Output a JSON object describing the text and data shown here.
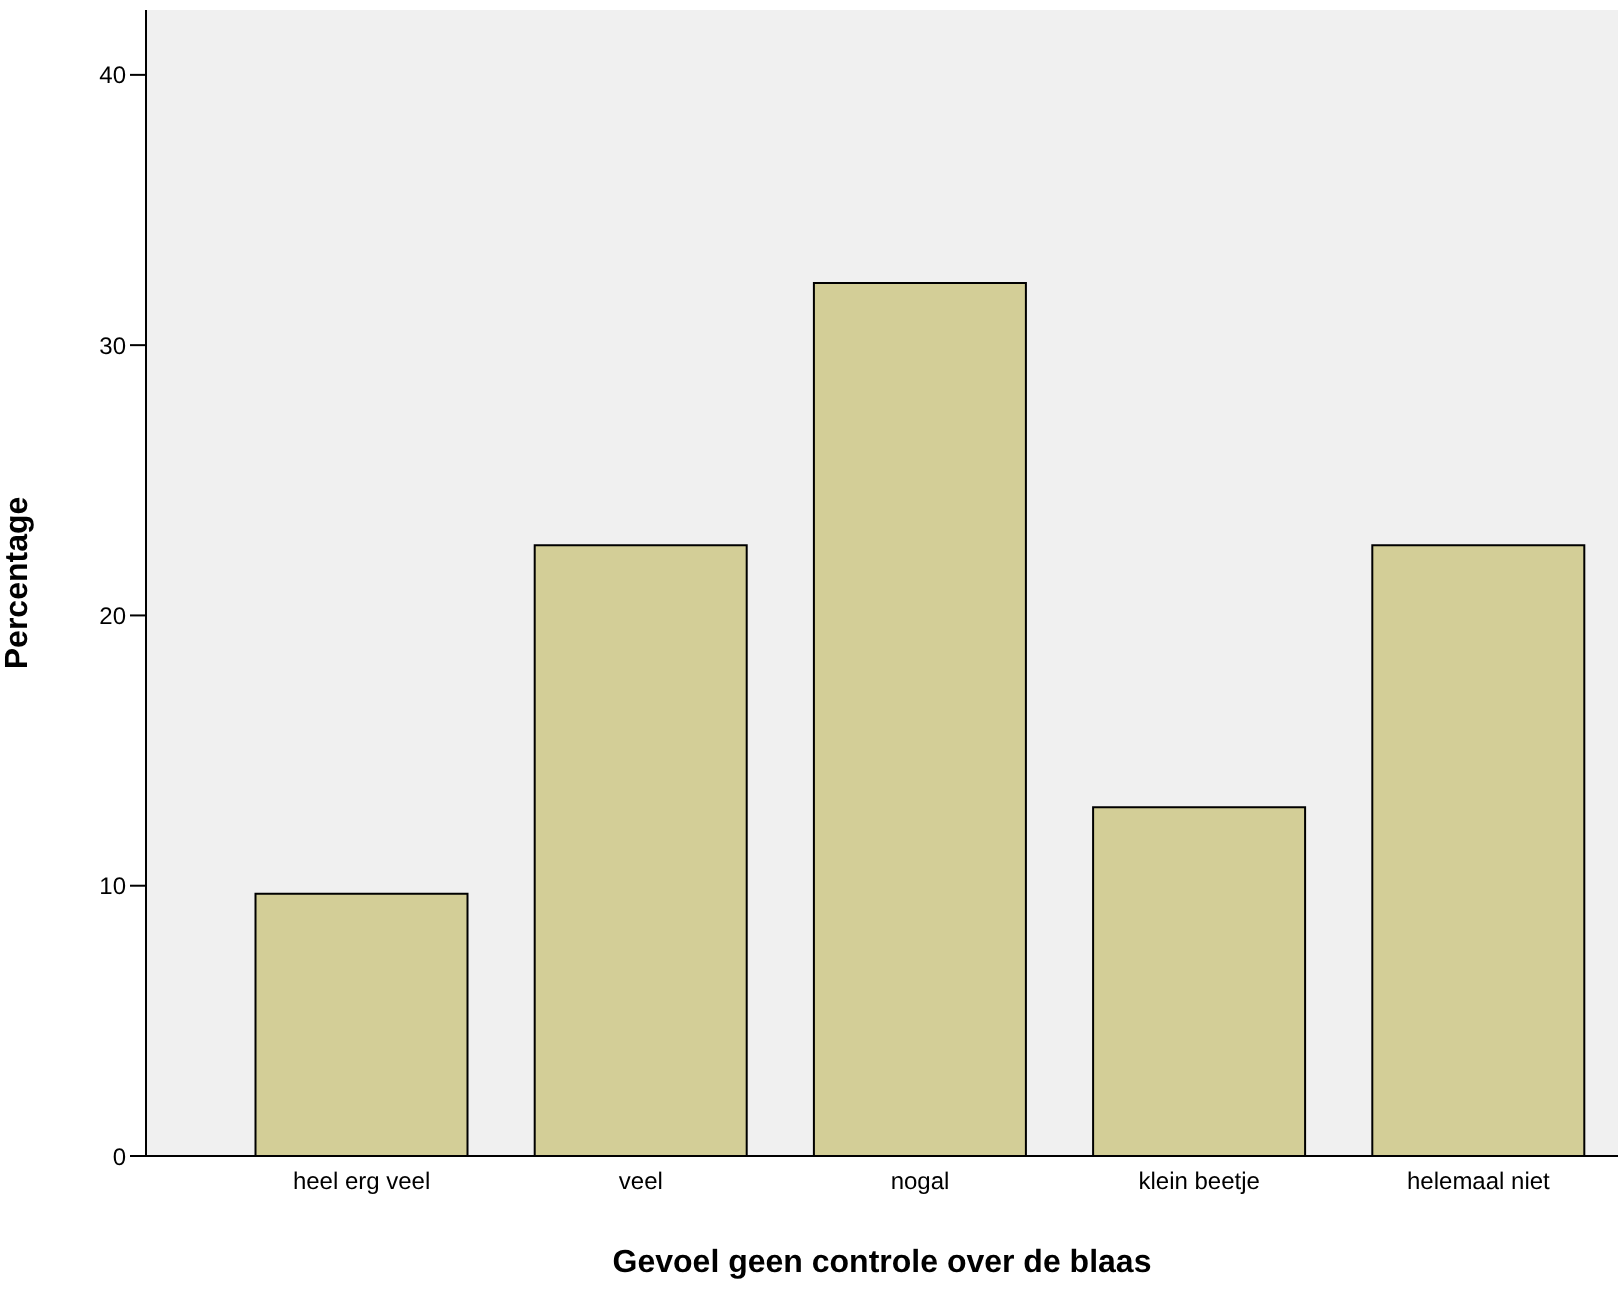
{
  "chart_data": {
    "type": "bar",
    "xlabel": "Gevoel geen controle over de blaas",
    "ylabel": "Percentage",
    "categories": [
      "heel erg veel",
      "veel",
      "nogal",
      "klein beetje",
      "helemaal niet"
    ],
    "values": [
      9.7,
      22.6,
      32.3,
      12.9,
      22.6
    ],
    "color": "#d3ce97",
    "ylim": [
      0,
      42.4
    ],
    "yticks": [
      0,
      10,
      20,
      30,
      40
    ],
    "grid": false
  }
}
